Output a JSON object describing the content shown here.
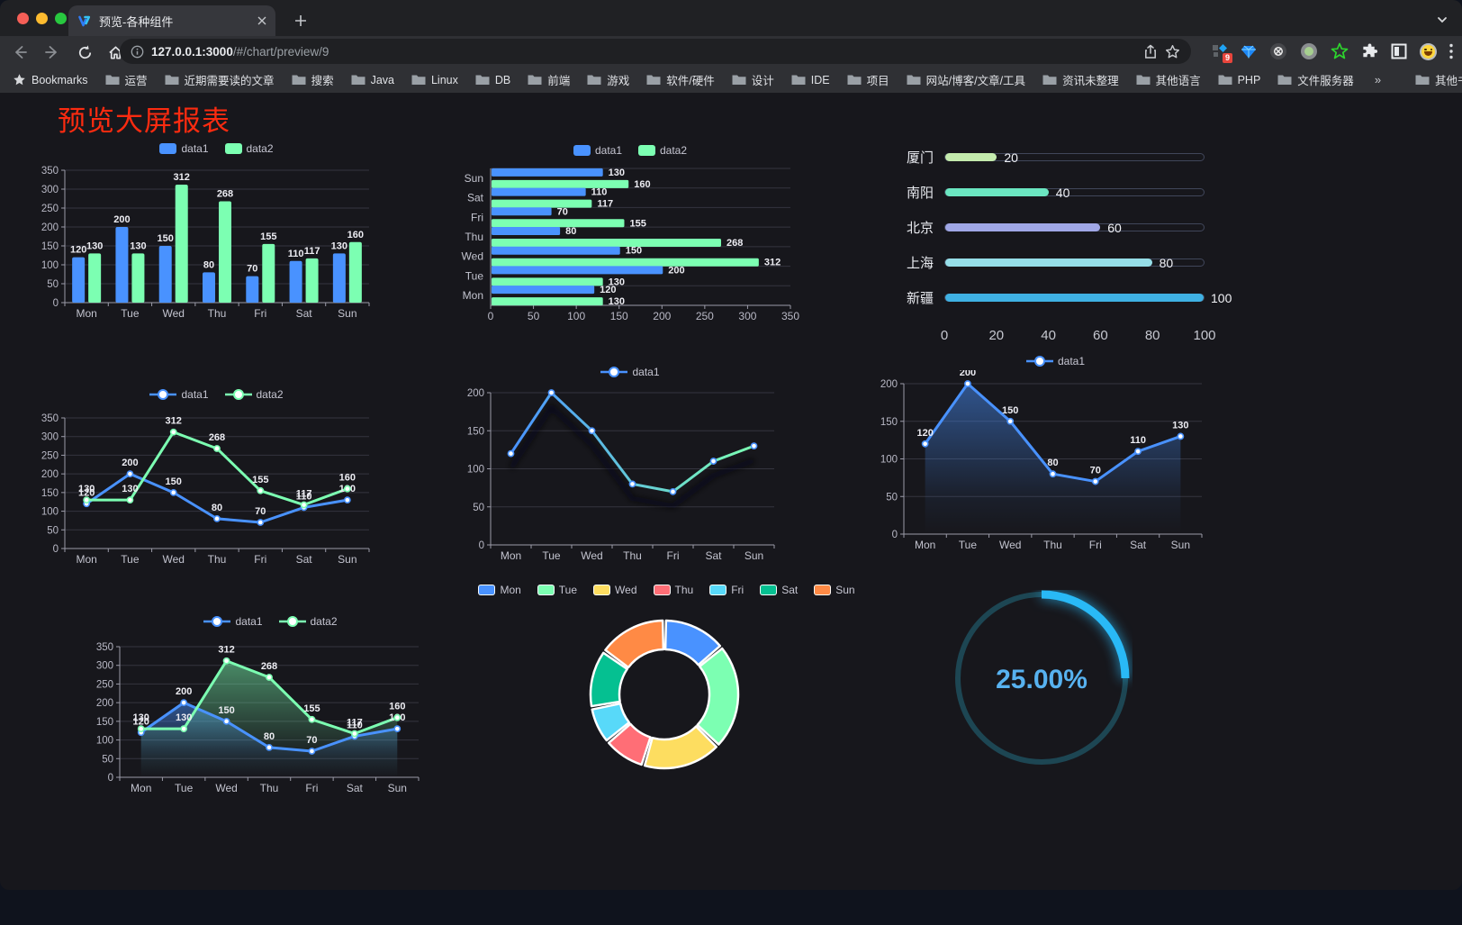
{
  "browser": {
    "tab": {
      "title": "预览-各种组件"
    },
    "url_host": "127.0.0.1:3000",
    "url_path": "/#/chart/preview/9",
    "extension_badge": "9",
    "bookmarks_label": "Bookmarks",
    "bookmarks": [
      "运营",
      "近期需要读的文章",
      "搜索",
      "Java",
      "Linux",
      "DB",
      "前端",
      "游戏",
      "软件/硬件",
      "设计",
      "IDE",
      "项目",
      "网站/博客/文章/工具",
      "资讯未整理",
      "其他语言",
      "PHP",
      "文件服务器"
    ],
    "bookmarks_overflow": "»",
    "other_bookmarks": "其他书签"
  },
  "page": {
    "title": "预览大屏报表",
    "title_color": "#fb2b10",
    "background": "#17171c"
  },
  "chart_data": [
    {
      "id": "bar-grouped",
      "type": "bar",
      "categories": [
        "Mon",
        "Tue",
        "Wed",
        "Thu",
        "Fri",
        "Sat",
        "Sun"
      ],
      "series": [
        {
          "name": "data1",
          "color": "#4992ff",
          "values": [
            120,
            200,
            150,
            80,
            70,
            110,
            130
          ]
        },
        {
          "name": "data2",
          "color": "#7cffb2",
          "values": [
            130,
            130,
            312,
            268,
            155,
            117,
            160
          ]
        }
      ],
      "ylim": [
        0,
        350
      ],
      "yticks": [
        0,
        50,
        100,
        150,
        200,
        250,
        300,
        350
      ],
      "legend": "rect",
      "legend_position": "top",
      "grid": true,
      "show_labels": true
    },
    {
      "id": "bar-horizontal",
      "type": "hbar",
      "categories_top_to_bottom": [
        "Sun",
        "Sat",
        "Fri",
        "Thu",
        "Wed",
        "Tue",
        "Mon"
      ],
      "series": [
        {
          "name": "data1",
          "color": "#4992ff",
          "values": [
            130,
            110,
            70,
            80,
            150,
            200,
            120
          ]
        },
        {
          "name": "data2",
          "color": "#7cffb2",
          "values": [
            160,
            117,
            155,
            268,
            312,
            130,
            130
          ]
        }
      ],
      "xlim": [
        0,
        350
      ],
      "xticks": [
        0,
        50,
        100,
        150,
        200,
        250,
        300,
        350
      ],
      "legend": "rect",
      "legend_position": "top",
      "grid": true,
      "show_labels": true
    },
    {
      "id": "progress-bars",
      "type": "progress",
      "rows": [
        {
          "label": "厦门",
          "value": 20,
          "color": "#c4ebad"
        },
        {
          "label": "南阳",
          "value": 40,
          "color": "#6be6c1"
        },
        {
          "label": "北京",
          "value": 60,
          "color": "#a0a7e6"
        },
        {
          "label": "上海",
          "value": 80,
          "color": "#96dee8"
        },
        {
          "label": "新疆",
          "value": 100,
          "color": "#3fb1e3"
        }
      ],
      "max": 100,
      "xticks": [
        0,
        20,
        40,
        60,
        80,
        100
      ]
    },
    {
      "id": "line-two-series",
      "type": "line",
      "categories": [
        "Mon",
        "Tue",
        "Wed",
        "Thu",
        "Fri",
        "Sat",
        "Sun"
      ],
      "series": [
        {
          "name": "data1",
          "color": "#4992ff",
          "values": [
            120,
            200,
            150,
            80,
            70,
            110,
            130
          ]
        },
        {
          "name": "data2",
          "color": "#7cffb2",
          "values": [
            130,
            130,
            312,
            268,
            155,
            117,
            160
          ]
        }
      ],
      "ylim": [
        0,
        350
      ],
      "yticks": [
        0,
        50,
        100,
        150,
        200,
        250,
        300,
        350
      ],
      "legend": "line",
      "legend_position": "top",
      "grid": true,
      "show_labels": true
    },
    {
      "id": "line-gradient",
      "type": "line",
      "categories": [
        "Mon",
        "Tue",
        "Wed",
        "Thu",
        "Fri",
        "Sat",
        "Sun"
      ],
      "series": [
        {
          "name": "data1",
          "gradient": [
            "#4992ff",
            "#7cffb2"
          ],
          "shadow": true,
          "values": [
            120,
            200,
            150,
            80,
            70,
            110,
            130
          ]
        }
      ],
      "ylim": [
        0,
        200
      ],
      "yticks": [
        0,
        50,
        100,
        150,
        200
      ],
      "legend": "line",
      "legend_position": "top",
      "grid": true,
      "show_labels": false
    },
    {
      "id": "line-area",
      "type": "line",
      "categories": [
        "Mon",
        "Tue",
        "Wed",
        "Thu",
        "Fri",
        "Sat",
        "Sun"
      ],
      "series": [
        {
          "name": "data1",
          "color": "#4992ff",
          "area": true,
          "values": [
            120,
            200,
            150,
            80,
            70,
            110,
            130
          ]
        }
      ],
      "ylim": [
        0,
        200
      ],
      "yticks": [
        0,
        50,
        100,
        150,
        200
      ],
      "legend": "line",
      "legend_position": "top",
      "grid": true,
      "show_labels": true
    },
    {
      "id": "line-area-two",
      "type": "line",
      "categories": [
        "Mon",
        "Tue",
        "Wed",
        "Thu",
        "Fri",
        "Sat",
        "Sun"
      ],
      "series": [
        {
          "name": "data1",
          "color": "#4992ff",
          "area": true,
          "values": [
            120,
            200,
            150,
            80,
            70,
            110,
            130
          ]
        },
        {
          "name": "data2",
          "color": "#7cffb2",
          "area": true,
          "values": [
            130,
            130,
            312,
            268,
            155,
            117,
            160
          ]
        }
      ],
      "ylim": [
        0,
        350
      ],
      "yticks": [
        0,
        50,
        100,
        150,
        200,
        250,
        300,
        350
      ],
      "legend": "line",
      "legend_position": "top",
      "grid": true,
      "show_labels": true
    },
    {
      "id": "donut",
      "type": "donut",
      "categories": [
        "Mon",
        "Tue",
        "Wed",
        "Thu",
        "Fri",
        "Sat",
        "Sun"
      ],
      "values": [
        120,
        200,
        150,
        80,
        70,
        110,
        130
      ],
      "colors": [
        "#4992ff",
        "#7cffb2",
        "#fddd60",
        "#ff6e76",
        "#58d9f9",
        "#05c091",
        "#ff8a45"
      ],
      "legend": "rect-border",
      "legend_position": "top"
    },
    {
      "id": "gauge",
      "type": "gauge",
      "label": "25.00%",
      "percent": 25,
      "color": "#29b9f6",
      "track": "#1d4653",
      "text_color": "#57b2f0"
    }
  ]
}
